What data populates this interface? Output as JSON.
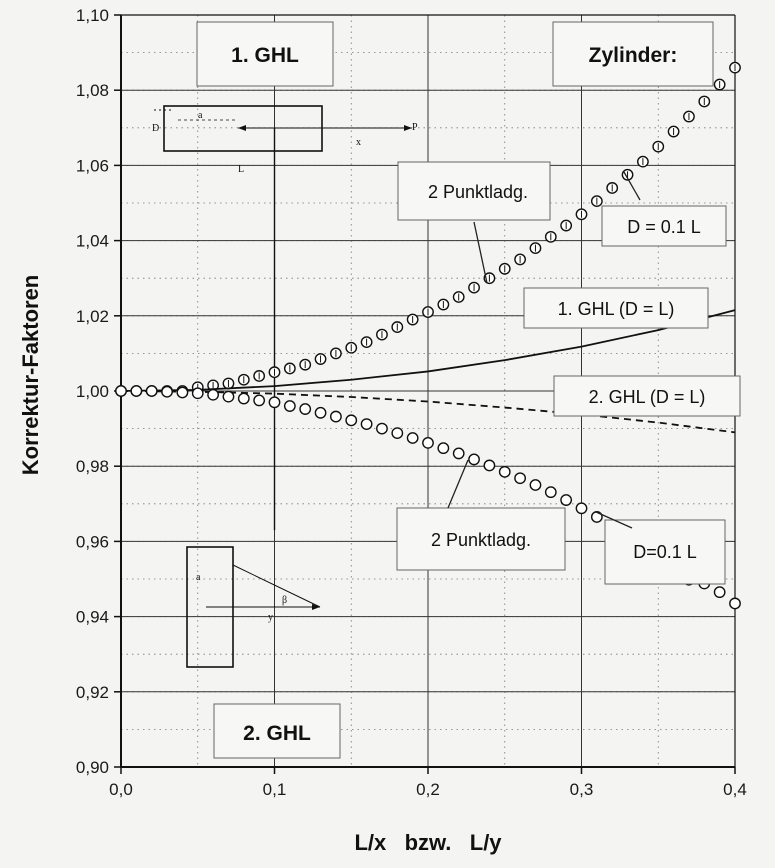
{
  "chart_data": {
    "type": "line",
    "title": "",
    "xlabel": "L/x   bzw.   L/y",
    "ylabel": "Korrektur-Faktoren",
    "xlim": [
      0.0,
      0.4
    ],
    "ylim": [
      0.9,
      1.1
    ],
    "x_ticks": [
      "0,0",
      "0,1",
      "0,2",
      "0,3",
      "0,4"
    ],
    "y_ticks": [
      "0,90",
      "0,92",
      "0,94",
      "0,96",
      "0,98",
      "1,00",
      "1,02",
      "1,04",
      "1,06",
      "1,08",
      "1,10"
    ],
    "grid": true,
    "series": [
      {
        "name": "2 Punktladg. D = 0.1 L (1. GHL)",
        "style": "markers",
        "x": [
          0.0,
          0.01,
          0.02,
          0.03,
          0.04,
          0.05,
          0.06,
          0.07,
          0.08,
          0.09,
          0.1,
          0.11,
          0.12,
          0.13,
          0.14,
          0.15,
          0.16,
          0.17,
          0.18,
          0.19,
          0.2,
          0.21,
          0.22,
          0.23,
          0.24,
          0.25,
          0.26,
          0.27,
          0.28,
          0.29,
          0.3,
          0.31,
          0.32,
          0.33,
          0.34,
          0.35,
          0.36,
          0.37,
          0.38,
          0.39,
          0.4
        ],
        "y": [
          1.0,
          1.0,
          1.0,
          1.0,
          1.0,
          1.001,
          1.0015,
          1.002,
          1.003,
          1.004,
          1.005,
          1.006,
          1.007,
          1.0085,
          1.01,
          1.0115,
          1.013,
          1.015,
          1.017,
          1.019,
          1.021,
          1.023,
          1.025,
          1.0275,
          1.03,
          1.0325,
          1.035,
          1.038,
          1.041,
          1.044,
          1.047,
          1.0505,
          1.054,
          1.0575,
          1.061,
          1.065,
          1.069,
          1.073,
          1.077,
          1.0815,
          1.086
        ]
      },
      {
        "name": "1. GHL (D = L)",
        "style": "solid",
        "x": [
          0.0,
          0.05,
          0.1,
          0.15,
          0.2,
          0.25,
          0.3,
          0.35,
          0.4
        ],
        "y": [
          1.0,
          1.0003,
          1.0013,
          1.003,
          1.0052,
          1.0082,
          1.0118,
          1.0162,
          1.0215
        ]
      },
      {
        "name": "2. GHL (D = L)",
        "style": "dashed",
        "x": [
          0.0,
          0.05,
          0.1,
          0.15,
          0.2,
          0.25,
          0.3,
          0.35,
          0.4
        ],
        "y": [
          1.0,
          0.9998,
          0.9993,
          0.9984,
          0.9972,
          0.9956,
          0.9938,
          0.9916,
          0.989
        ]
      },
      {
        "name": "2 Punktladg. D=0.1 L (2. GHL)",
        "style": "markers",
        "x": [
          0.0,
          0.01,
          0.02,
          0.03,
          0.04,
          0.05,
          0.06,
          0.07,
          0.08,
          0.09,
          0.1,
          0.11,
          0.12,
          0.13,
          0.14,
          0.15,
          0.16,
          0.17,
          0.18,
          0.19,
          0.2,
          0.21,
          0.22,
          0.23,
          0.24,
          0.25,
          0.26,
          0.27,
          0.28,
          0.29,
          0.3,
          0.31,
          0.32,
          0.33,
          0.34,
          0.35,
          0.36,
          0.37,
          0.38,
          0.39,
          0.4
        ],
        "y": [
          1.0,
          1.0,
          1.0,
          0.9998,
          0.9996,
          0.9994,
          0.999,
          0.9985,
          0.998,
          0.9975,
          0.997,
          0.996,
          0.9952,
          0.9942,
          0.9932,
          0.9922,
          0.9912,
          0.99,
          0.9888,
          0.9875,
          0.9862,
          0.9848,
          0.9834,
          0.9818,
          0.9802,
          0.9785,
          0.9768,
          0.975,
          0.9731,
          0.971,
          0.9688,
          0.9665,
          0.964,
          0.9615,
          0.9588,
          0.956,
          0.953,
          0.9498,
          0.9488,
          0.9465,
          0.9435
        ]
      }
    ],
    "annotations": {
      "box_1ghl": "1. GHL",
      "box_2ghl": "2. GHL",
      "box_zylinder": "Zylinder:",
      "box_punkt_upper": "2 Punktladg.",
      "box_d01_upper": "D = 0.1 L",
      "box_1ghl_dl": "1. GHL (D = L)",
      "box_2ghl_dl": "2. GHL (D = L)",
      "box_punkt_lower": "2 Punktladg.",
      "box_d01_lower": "D=0.1 L"
    },
    "sketch_upper": {
      "d": "D",
      "a": "a",
      "x": "x",
      "p": "P",
      "l": "L"
    },
    "sketch_lower": {
      "a": "a",
      "y": "y",
      "beta": "β"
    }
  }
}
